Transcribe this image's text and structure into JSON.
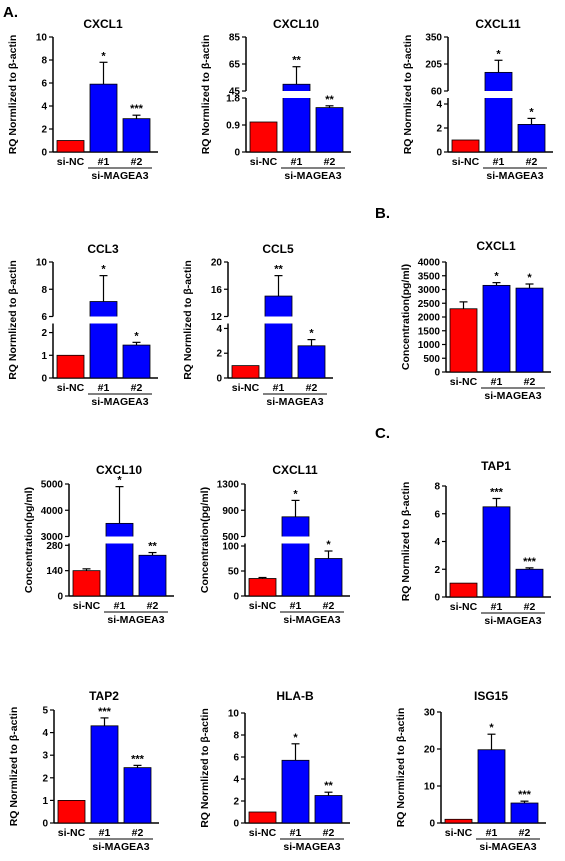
{
  "panel_labels": [
    "A.",
    "B.",
    "C."
  ],
  "colors": {
    "control": "#FF0000",
    "treated": "#0000FF",
    "axis": "#000000"
  },
  "chart_data": [
    {
      "id": "cxcl1_rq",
      "type": "bar",
      "title": "CXCL1",
      "ylabel": "RQ Normlized to β-actin",
      "categories": [
        "si-NC",
        "#1",
        "#2"
      ],
      "group_label": "si-MAGEA3",
      "values": [
        1,
        5.9,
        2.9
      ],
      "errors": [
        0,
        1.9,
        0.3
      ],
      "significance": [
        "",
        "*",
        "***"
      ],
      "ylim": [
        0,
        10
      ],
      "yticks": [
        0,
        2,
        4,
        6,
        8,
        10
      ],
      "break": null
    },
    {
      "id": "cxcl10_rq",
      "type": "bar",
      "title": "CXCL10",
      "ylabel": "RQ Normlized to β-actin",
      "categories": [
        "si-NC",
        "#1",
        "#2"
      ],
      "group_label": "si-MAGEA3",
      "values": [
        1,
        50,
        1.48
      ],
      "errors": [
        0,
        13,
        0.06
      ],
      "significance": [
        "",
        "**",
        "**"
      ],
      "ylim": [
        0,
        85
      ],
      "yticks": [
        0,
        0.9,
        1.8,
        45,
        65,
        85
      ],
      "break": {
        "lower": [
          0,
          1.8
        ],
        "upper": [
          45,
          85
        ]
      }
    },
    {
      "id": "cxcl11_rq",
      "type": "bar",
      "title": "CXCL11",
      "ylabel": "RQ Normlized to β-actin",
      "categories": [
        "si-NC",
        "#1",
        "#2"
      ],
      "group_label": "si-MAGEA3",
      "values": [
        1,
        160,
        2.3
      ],
      "errors": [
        0,
        65,
        0.5
      ],
      "significance": [
        "",
        "*",
        "*"
      ],
      "ylim": [
        0,
        350
      ],
      "yticks": [
        0,
        2,
        4,
        60,
        205,
        350
      ],
      "break": {
        "lower": [
          0,
          4.5
        ],
        "upper": [
          60,
          350
        ]
      }
    },
    {
      "id": "ccl3_rq",
      "type": "bar",
      "title": "CCL3",
      "ylabel": "RQ Normlized to β-actin",
      "categories": [
        "si-NC",
        "#1",
        "#2"
      ],
      "group_label": "si-MAGEA3",
      "values": [
        1,
        7.1,
        1.45
      ],
      "errors": [
        0,
        1.9,
        0.12
      ],
      "significance": [
        "",
        "*",
        "*"
      ],
      "ylim": [
        0,
        10
      ],
      "yticks": [
        0,
        1,
        2,
        6,
        8,
        10
      ],
      "break": {
        "lower": [
          0,
          2.4
        ],
        "upper": [
          6,
          10
        ]
      }
    },
    {
      "id": "ccl5_rq",
      "type": "bar",
      "title": "CCL5",
      "ylabel": "RQ Normlized to β-actin",
      "categories": [
        "si-NC",
        "#1",
        "#2"
      ],
      "group_label": "si-MAGEA3",
      "values": [
        1,
        15,
        2.6
      ],
      "errors": [
        0,
        3,
        0.5
      ],
      "significance": [
        "",
        "**",
        "*"
      ],
      "ylim": [
        0,
        20
      ],
      "yticks": [
        0,
        2,
        4,
        12,
        16,
        20
      ],
      "break": {
        "lower": [
          0,
          4.4
        ],
        "upper": [
          12,
          20
        ]
      }
    },
    {
      "id": "cxcl1_conc",
      "type": "bar",
      "title": "CXCL1",
      "ylabel": "Concentration(pg/ml)",
      "categories": [
        "si-NC",
        "#1",
        "#2"
      ],
      "group_label": "si-MAGEA3",
      "values": [
        2300,
        3150,
        3050
      ],
      "errors": [
        250,
        100,
        150
      ],
      "significance": [
        "",
        "*",
        "*"
      ],
      "ylim": [
        0,
        4000
      ],
      "yticks": [
        0,
        500,
        1000,
        1500,
        2000,
        2500,
        3000,
        3500,
        4000
      ],
      "break": null
    },
    {
      "id": "tap1_rq",
      "type": "bar",
      "title": "TAP1",
      "ylabel": "RQ Normlized to β-actin",
      "categories": [
        "si-NC",
        "#1",
        "#2"
      ],
      "group_label": "si-MAGEA3",
      "values": [
        1,
        6.5,
        2
      ],
      "errors": [
        0,
        0.6,
        0.1
      ],
      "significance": [
        "",
        "***",
        "***"
      ],
      "ylim": [
        0,
        8
      ],
      "yticks": [
        0,
        2,
        4,
        6,
        8
      ],
      "break": null
    },
    {
      "id": "cxcl10_conc",
      "type": "bar",
      "title": "CXCL10",
      "ylabel": "Concentration(pg/ml)",
      "categories": [
        "si-NC",
        "#1",
        "#2"
      ],
      "group_label": "si-MAGEA3",
      "values": [
        140,
        3500,
        225
      ],
      "errors": [
        10,
        1400,
        15
      ],
      "significance": [
        "",
        "*",
        "**"
      ],
      "ylim": [
        0,
        5000
      ],
      "yticks": [
        0,
        140,
        280,
        3000,
        4000,
        5000
      ],
      "break": {
        "lower": [
          0,
          290
        ],
        "upper": [
          3000,
          5000
        ]
      }
    },
    {
      "id": "cxcl11_conc",
      "type": "bar",
      "title": "CXCL11",
      "ylabel": "Concentration(pg/ml)",
      "categories": [
        "si-NC",
        "#1",
        "#2"
      ],
      "group_label": "si-MAGEA3",
      "values": [
        35,
        800,
        75
      ],
      "errors": [
        2,
        250,
        15
      ],
      "significance": [
        "",
        "*",
        "*"
      ],
      "ylim": [
        0,
        1300
      ],
      "yticks": [
        0,
        50,
        100,
        500,
        900,
        1300
      ],
      "break": {
        "lower": [
          0,
          105
        ],
        "upper": [
          500,
          1300
        ]
      }
    },
    {
      "id": "tap2_rq",
      "type": "bar",
      "title": "TAP2",
      "ylabel": "RQ Normlized to β-actin",
      "categories": [
        "si-NC",
        "#1",
        "#2"
      ],
      "group_label": "si-MAGEA3",
      "values": [
        1,
        4.3,
        2.45
      ],
      "errors": [
        0,
        0.35,
        0.1
      ],
      "significance": [
        "",
        "***",
        "***"
      ],
      "ylim": [
        0,
        5
      ],
      "yticks": [
        0,
        1,
        2,
        3,
        4,
        5
      ],
      "break": null
    },
    {
      "id": "hlab_rq",
      "type": "bar",
      "title": "HLA-B",
      "ylabel": "RQ Normlized to β-actin",
      "categories": [
        "si-NC",
        "#1",
        "#2"
      ],
      "group_label": "si-MAGEA3",
      "values": [
        1,
        5.7,
        2.5
      ],
      "errors": [
        0,
        1.5,
        0.3
      ],
      "significance": [
        "",
        "*",
        "**"
      ],
      "ylim": [
        0,
        10
      ],
      "yticks": [
        0,
        2,
        4,
        6,
        8,
        10
      ],
      "break": null
    },
    {
      "id": "isg15_rq",
      "type": "bar",
      "title": "ISG15",
      "ylabel": "RQ Normlized to β-actin",
      "categories": [
        "si-NC",
        "#1",
        "#2"
      ],
      "group_label": "si-MAGEA3",
      "values": [
        1,
        19.8,
        5.4
      ],
      "errors": [
        0,
        4.2,
        0.5
      ],
      "significance": [
        "",
        "*",
        "***"
      ],
      "ylim": [
        0,
        30
      ],
      "yticks": [
        0,
        10,
        20,
        30
      ],
      "break": null
    }
  ]
}
